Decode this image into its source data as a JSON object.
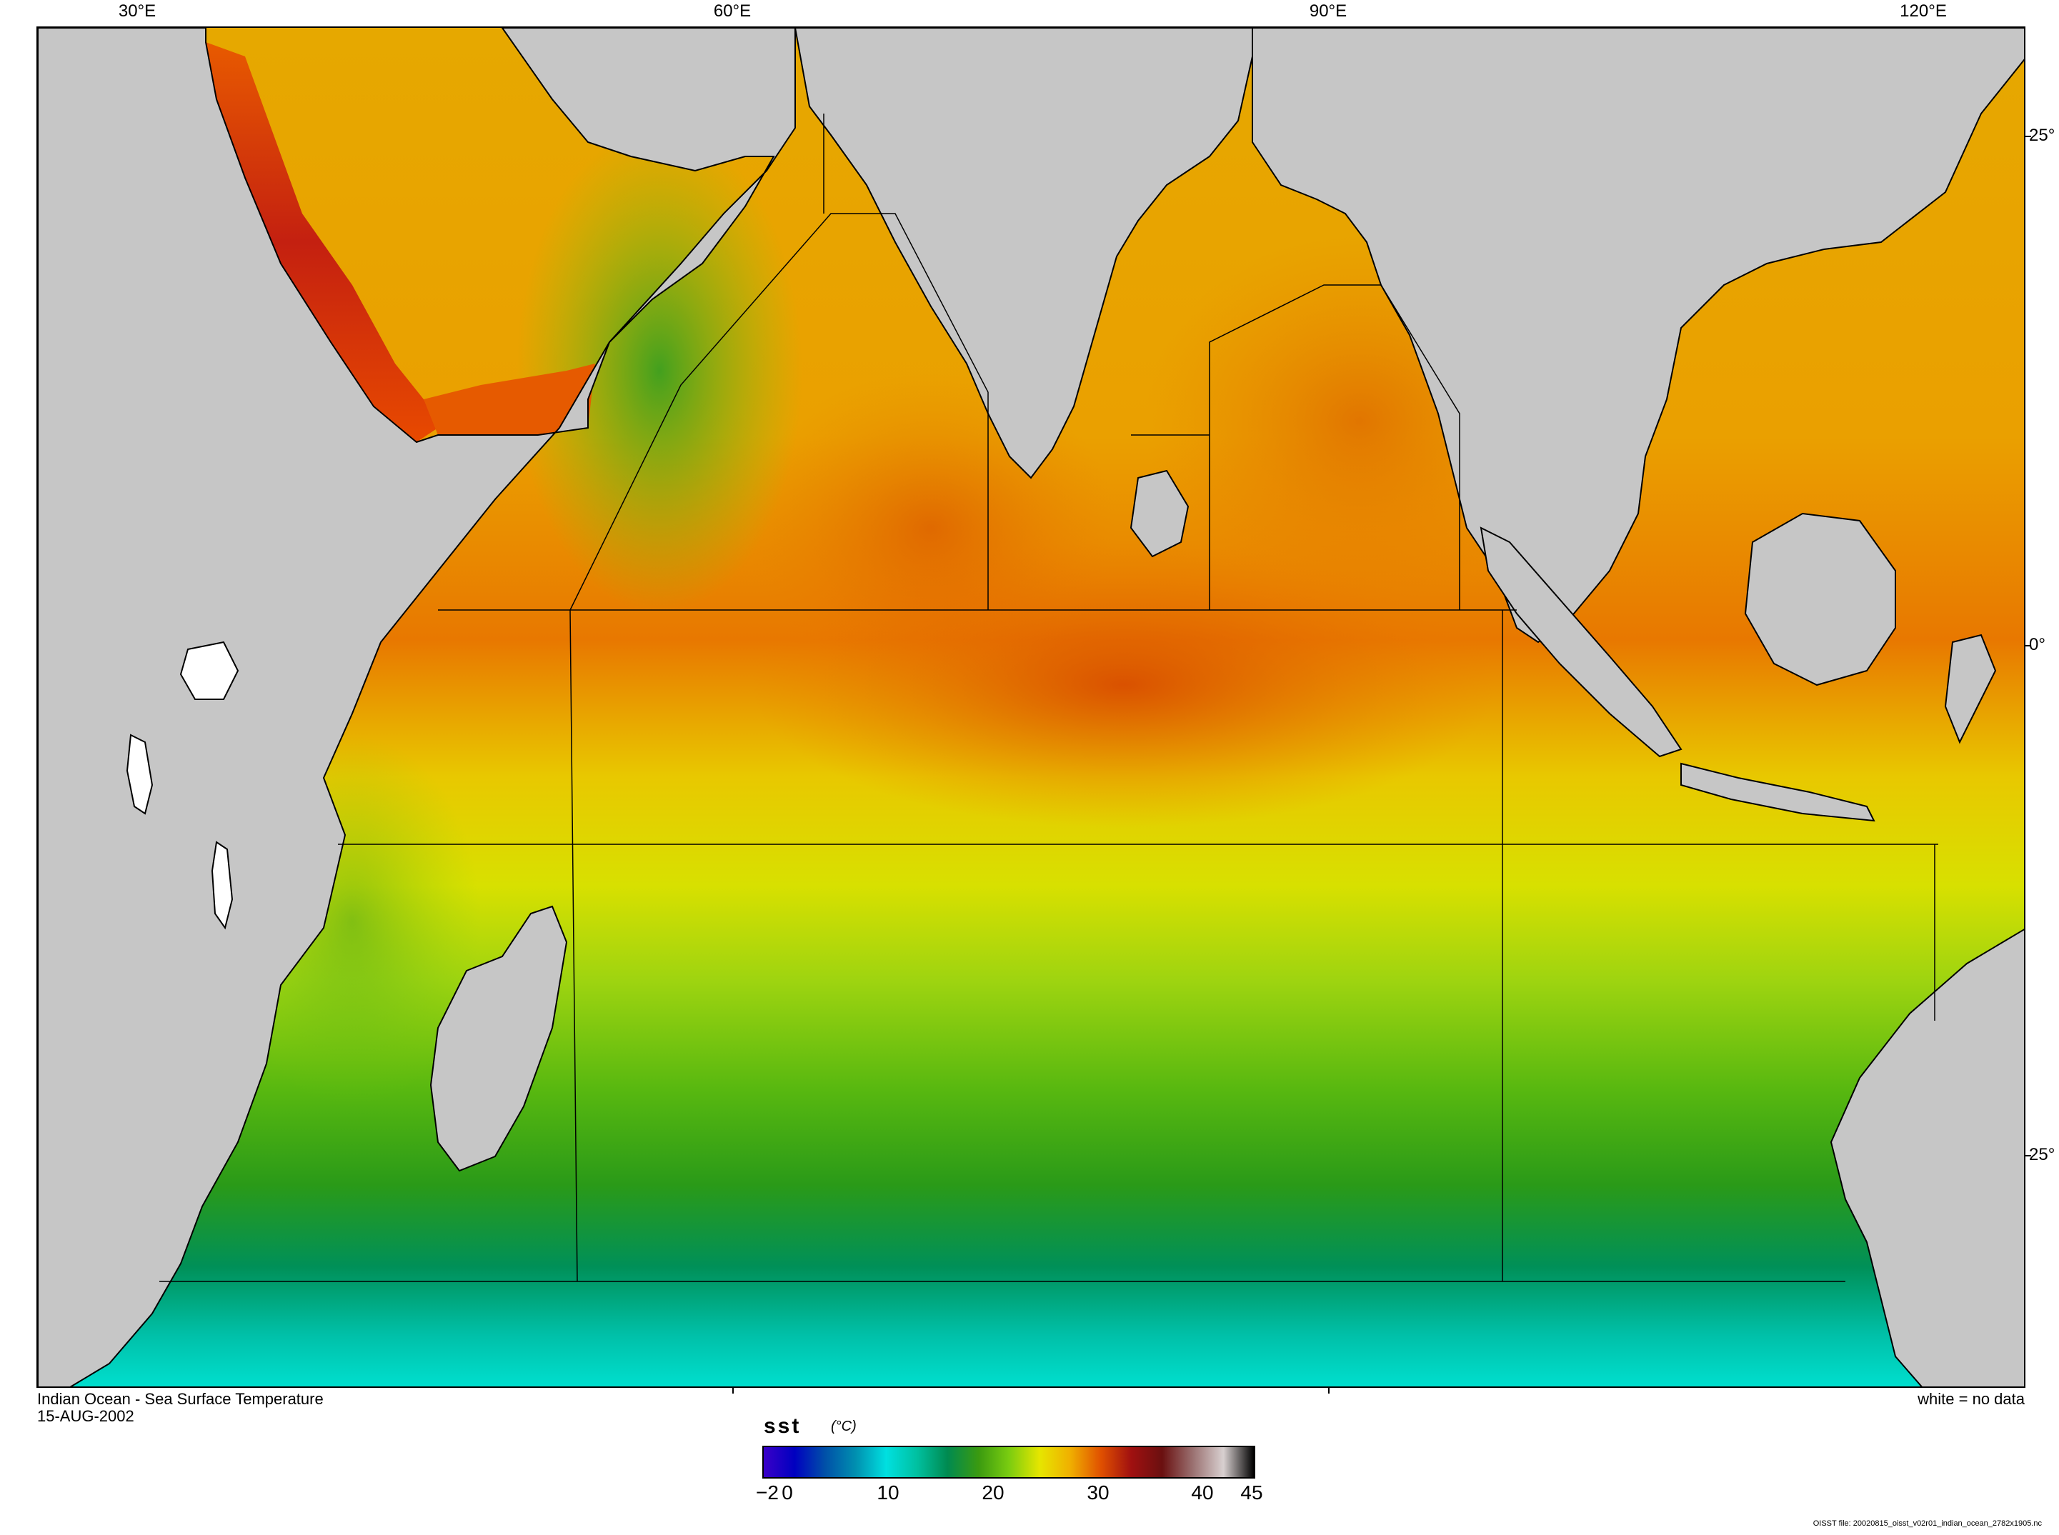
{
  "map": {
    "title": "Indian Ocean - Sea Surface Temperature",
    "date": "15-AUG-2002",
    "no_data_note": "white = no data",
    "lon_ticks": [
      "30°E",
      "60°E",
      "90°E",
      "120°E"
    ],
    "lat_ticks": [
      "25°",
      "0°",
      "25°"
    ],
    "colors": {
      "land": "#c6c6c6",
      "no_data": "#ffffff",
      "boundary": "#000000"
    }
  },
  "legend": {
    "variable": "sst",
    "unit": "(°C)",
    "tick_labels": [
      "−2",
      "0",
      "10",
      "20",
      "30",
      "40",
      "45"
    ],
    "range": [
      -2,
      45
    ],
    "colormap": [
      "#3a00c8",
      "#0000c0",
      "#0050a8",
      "#0090b0",
      "#00e0e0",
      "#00c0a0",
      "#008a50",
      "#3a9a10",
      "#7acc10",
      "#e6e600",
      "#f0b000",
      "#e05000",
      "#a01010",
      "#6a1010",
      "#9a7070",
      "#d8d0d0",
      "#000000"
    ]
  },
  "footer": {
    "file_note": "OISST file: 20020815_oisst_v02r01_indian_ocean_2782x1905.nc"
  }
}
